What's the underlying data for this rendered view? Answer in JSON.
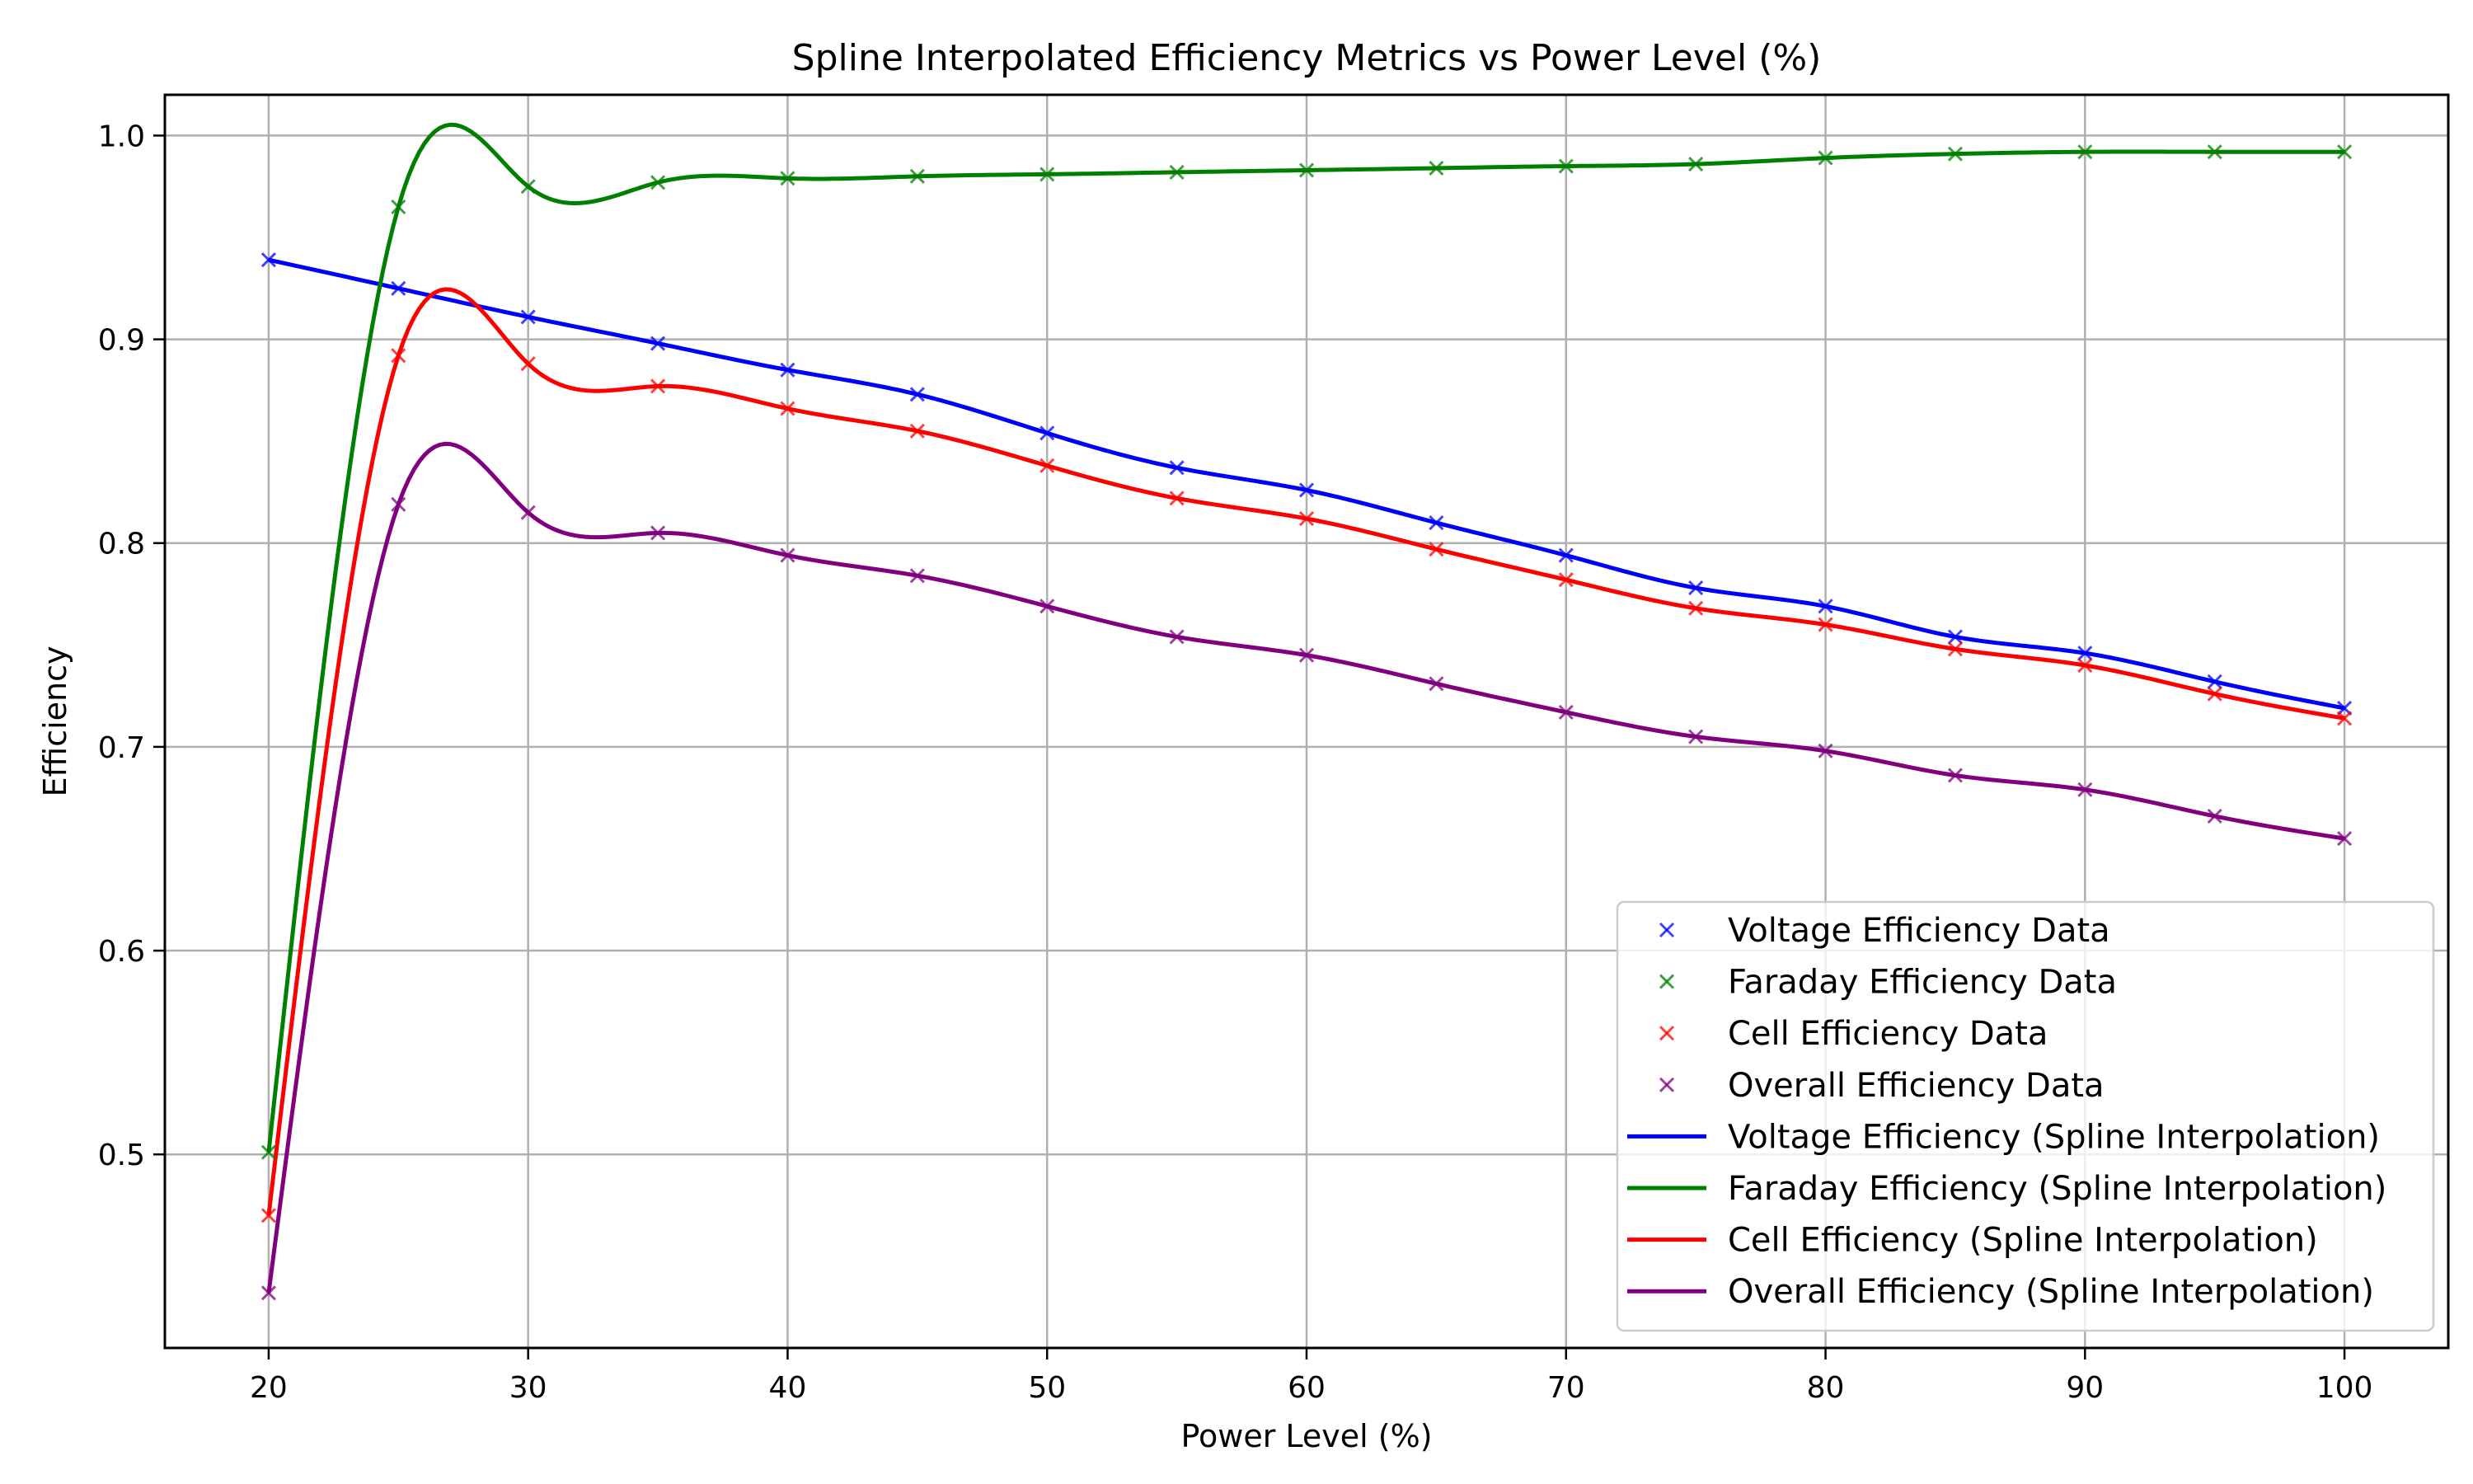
{
  "chart_data": {
    "type": "line",
    "title": "Spline Interpolated Efficiency Metrics vs Power Level (%)",
    "xlabel": "Power Level (%)",
    "ylabel": "Efficiency",
    "xlim": [
      16,
      104
    ],
    "ylim": [
      0.405,
      1.02
    ],
    "x_ticks": [
      20,
      30,
      40,
      50,
      60,
      70,
      80,
      90,
      100
    ],
    "y_ticks": [
      0.5,
      0.6,
      0.7,
      0.8,
      0.9,
      1.0
    ],
    "y_tick_labels": [
      "0.5",
      "0.6",
      "0.7",
      "0.8",
      "0.9",
      "1.0"
    ],
    "grid": true,
    "legend_position": "lower-right",
    "x": [
      20,
      25,
      30,
      35,
      40,
      45,
      50,
      55,
      60,
      65,
      70,
      75,
      80,
      85,
      90,
      95,
      100
    ],
    "series": [
      {
        "name": "Voltage Efficiency Data",
        "line_name": "Voltage Efficiency (Spline Interpolation)",
        "color": "#0000ff",
        "values": [
          0.939,
          0.925,
          0.911,
          0.898,
          0.885,
          0.873,
          0.854,
          0.837,
          0.826,
          0.81,
          0.794,
          0.778,
          0.769,
          0.754,
          0.746,
          0.732,
          0.719
        ]
      },
      {
        "name": "Faraday Efficiency Data",
        "line_name": "Faraday Efficiency (Spline Interpolation)",
        "color": "#008000",
        "values": [
          0.501,
          0.965,
          0.975,
          0.977,
          0.979,
          0.98,
          0.981,
          0.982,
          0.983,
          0.984,
          0.985,
          0.986,
          0.989,
          0.991,
          0.992,
          0.992,
          0.992
        ]
      },
      {
        "name": "Cell Efficiency Data",
        "line_name": "Cell Efficiency (Spline Interpolation)",
        "color": "#ff0000",
        "values": [
          0.47,
          0.892,
          0.888,
          0.877,
          0.866,
          0.855,
          0.838,
          0.822,
          0.812,
          0.797,
          0.782,
          0.768,
          0.76,
          0.748,
          0.74,
          0.726,
          0.714
        ]
      },
      {
        "name": "Overall Efficiency Data",
        "line_name": "Overall Efficiency (Spline Interpolation)",
        "color": "#800080",
        "values": [
          0.432,
          0.819,
          0.815,
          0.805,
          0.794,
          0.784,
          0.769,
          0.754,
          0.745,
          0.731,
          0.717,
          0.705,
          0.698,
          0.686,
          0.679,
          0.666,
          0.655
        ]
      }
    ]
  }
}
